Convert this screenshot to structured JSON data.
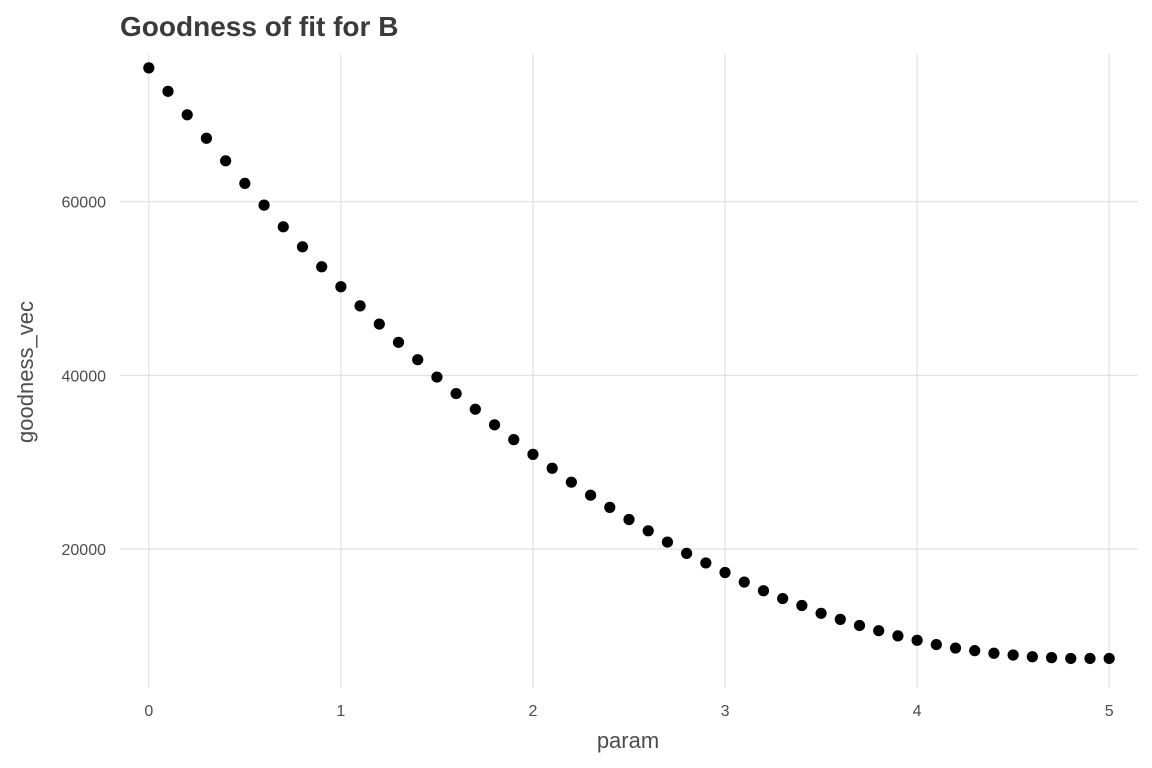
{
  "chart_data": {
    "type": "scatter",
    "title": "Goodness of fit for B",
    "xlabel": "param",
    "ylabel": "goodness_vec",
    "xlim": [
      -0.15,
      5.15
    ],
    "ylim": [
      4000,
      77000
    ],
    "xticks": [
      0,
      1,
      2,
      3,
      4,
      5
    ],
    "xtick_labels": [
      "0",
      "1",
      "2",
      "3",
      "4",
      "5"
    ],
    "yticks": [
      20000,
      40000,
      60000
    ],
    "ytick_labels": [
      "20000",
      "40000",
      "60000"
    ],
    "grid": true,
    "legend": "none",
    "point_color": "#000000",
    "x": [
      0,
      0.1,
      0.2,
      0.3,
      0.4,
      0.5,
      0.6,
      0.7,
      0.8,
      0.9,
      1.0,
      1.1,
      1.2,
      1.3,
      1.4,
      1.5,
      1.6,
      1.7,
      1.8,
      1.9,
      2.0,
      2.1,
      2.2,
      2.3,
      2.4,
      2.5,
      2.6,
      2.7,
      2.8,
      2.9,
      3.0,
      3.1,
      3.2,
      3.3,
      3.4,
      3.5,
      3.6,
      3.7,
      3.8,
      3.9,
      4.0,
      4.1,
      4.2,
      4.3,
      4.4,
      4.5,
      4.6,
      4.7,
      4.8,
      4.9,
      5.0
    ],
    "y": [
      75400,
      72700,
      70000,
      67300,
      64700,
      62100,
      59600,
      57100,
      54800,
      52500,
      50200,
      48000,
      45900,
      43800,
      41800,
      39800,
      37900,
      36100,
      34300,
      32600,
      30900,
      29300,
      27700,
      26200,
      24800,
      23400,
      22100,
      20800,
      19500,
      18400,
      17300,
      16200,
      15200,
      14300,
      13500,
      12600,
      11900,
      11200,
      10600,
      10000,
      9500,
      9000,
      8600,
      8300,
      8000,
      7800,
      7600,
      7500,
      7400,
      7400,
      7400
    ]
  }
}
